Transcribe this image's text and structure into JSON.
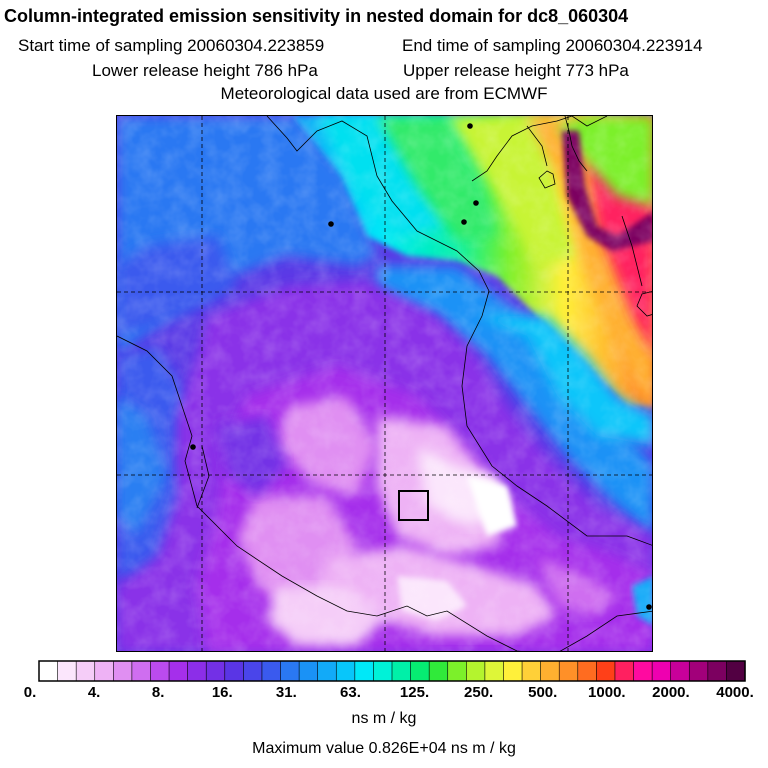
{
  "header": {
    "title": "Column-integrated emission sensitivity in nested domain for dc8_060304",
    "start_label": "Start time of sampling 20060304.223859",
    "end_label": "End time of sampling 20060304.223914",
    "lower_label": "Lower release height  786 hPa",
    "upper_label": "Upper release height  773 hPa",
    "met_label": "Meteorological data used are from ECMWF"
  },
  "colorbar": {
    "colors": [
      "#ffffff",
      "#fbe6fc",
      "#f5cdf8",
      "#eeb2f5",
      "#e08ff2",
      "#cf6ef0",
      "#bb4bee",
      "#a52feb",
      "#8c2ee8",
      "#7330e6",
      "#5a35e5",
      "#4a45ea",
      "#3a5aee",
      "#2a78f2",
      "#1a92f6",
      "#12aaf8",
      "#08c6fa",
      "#00e8f8",
      "#00f2d8",
      "#00f0a8",
      "#06ec72",
      "#30ea3a",
      "#7cf02a",
      "#b4f42e",
      "#def638",
      "#fff03a",
      "#ffd038",
      "#ffb030",
      "#ff9028",
      "#ff6c20",
      "#ff4018",
      "#ff2060",
      "#ff0aa0",
      "#ee00b0",
      "#c8009a",
      "#a2007a",
      "#7c0060",
      "#520042"
    ],
    "tick_labels": [
      "0.",
      "4.",
      "8.",
      "16.",
      "31.",
      "63.",
      "125.",
      "250.",
      "500.",
      "1000.",
      "2000.",
      "4000."
    ],
    "units": "ns m / kg"
  },
  "max_value_label": "Maximum value  0.826E+04 ns m / kg"
}
